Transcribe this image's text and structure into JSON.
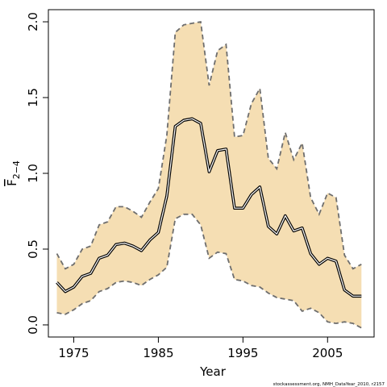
{
  "chart_data": {
    "type": "area",
    "xlabel": "Year",
    "ylabel_main": "F",
    "ylabel_sub": "2−4",
    "xlim": [
      1972,
      2010.5
    ],
    "ylim": [
      -0.08,
      2.08
    ],
    "x_ticks": [
      1975,
      1985,
      1995,
      2005
    ],
    "y_ticks": [
      0.0,
      0.5,
      1.0,
      1.5,
      2.0
    ],
    "y_tick_labels": [
      "0.0",
      "0.5",
      "1.0",
      "1.5",
      "2.0"
    ],
    "grid": false,
    "legend": "none",
    "credit": "stockassessment.org, NMH_DataYear_2010, r2157",
    "colors": {
      "band_fill": "#f5deb3",
      "band_edge": "#6e6e6e",
      "estimate": "#333333",
      "estimate_outline": "#000000"
    },
    "x": [
      1973,
      1974,
      1975,
      1976,
      1977,
      1978,
      1979,
      1980,
      1981,
      1982,
      1983,
      1984,
      1985,
      1986,
      1987,
      1988,
      1989,
      1990,
      1991,
      1992,
      1993,
      1994,
      1995,
      1996,
      1997,
      1998,
      1999,
      2000,
      2001,
      2002,
      2003,
      2004,
      2005,
      2006,
      2007,
      2008,
      2009
    ],
    "series": [
      {
        "role": "estimate",
        "values": [
          0.28,
          0.22,
          0.25,
          0.32,
          0.34,
          0.44,
          0.46,
          0.53,
          0.54,
          0.52,
          0.49,
          0.56,
          0.61,
          0.85,
          1.31,
          1.35,
          1.36,
          1.33,
          1.01,
          1.15,
          1.16,
          0.77,
          0.77,
          0.86,
          0.91,
          0.65,
          0.6,
          0.72,
          0.62,
          0.64,
          0.47,
          0.4,
          0.44,
          0.42,
          0.23,
          0.19,
          0.19
        ]
      },
      {
        "role": "upper_bound",
        "values": [
          0.47,
          0.37,
          0.4,
          0.5,
          0.52,
          0.66,
          0.68,
          0.78,
          0.78,
          0.75,
          0.71,
          0.81,
          0.9,
          1.25,
          1.93,
          1.98,
          1.99,
          2.0,
          1.58,
          1.81,
          1.85,
          1.24,
          1.25,
          1.46,
          1.56,
          1.1,
          1.03,
          1.27,
          1.09,
          1.2,
          0.84,
          0.73,
          0.87,
          0.84,
          0.46,
          0.37,
          0.4
        ]
      },
      {
        "role": "lower_bound",
        "values": [
          0.08,
          0.07,
          0.1,
          0.14,
          0.16,
          0.22,
          0.24,
          0.28,
          0.29,
          0.28,
          0.26,
          0.3,
          0.33,
          0.38,
          0.7,
          0.73,
          0.73,
          0.66,
          0.44,
          0.48,
          0.47,
          0.3,
          0.29,
          0.26,
          0.25,
          0.21,
          0.18,
          0.17,
          0.16,
          0.09,
          0.11,
          0.08,
          0.02,
          0.01,
          0.02,
          0.01,
          -0.02
        ]
      }
    ]
  }
}
